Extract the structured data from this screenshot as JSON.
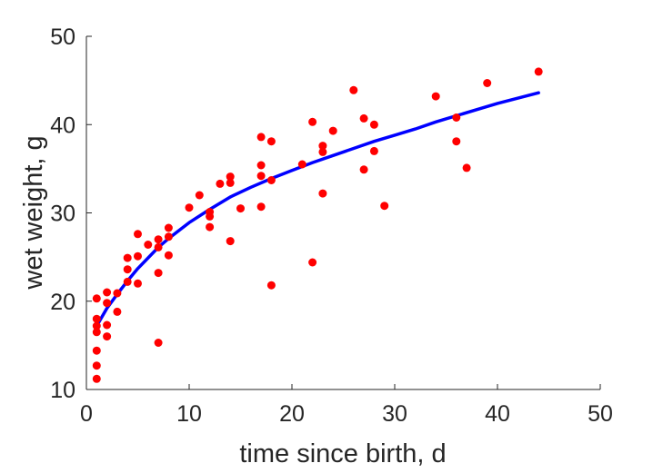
{
  "chart_data": {
    "type": "scatter",
    "xlabel": "time since birth, d",
    "ylabel": "wet weight, g",
    "xlim": [
      0,
      50
    ],
    "ylim": [
      10,
      50
    ],
    "xticks": [
      0,
      10,
      20,
      30,
      40,
      50
    ],
    "yticks": [
      10,
      20,
      30,
      40,
      50
    ],
    "xtick_labels": [
      "0",
      "10",
      "20",
      "30",
      "40",
      "50"
    ],
    "ytick_labels": [
      "10",
      "20",
      "30",
      "40",
      "50"
    ],
    "grid": false,
    "box": false,
    "colors": {
      "points": "#ff0000",
      "fit": "#0000ff",
      "axis": "#262626"
    },
    "series": [
      {
        "kind": "points",
        "x": [
          1,
          1,
          1,
          1,
          1,
          1,
          1,
          2,
          2,
          2,
          2,
          3,
          3,
          4,
          4,
          4,
          5,
          5,
          5,
          6,
          7,
          7,
          7,
          7,
          8,
          8,
          8,
          10,
          11,
          12,
          12,
          12,
          13,
          14,
          14,
          14,
          15,
          17,
          17,
          17,
          17,
          18,
          18,
          18,
          21,
          22,
          22,
          23,
          23,
          23,
          24,
          26,
          27,
          27,
          28,
          28,
          29,
          34,
          36,
          36,
          37,
          39,
          44
        ],
        "y": [
          20.3,
          18.0,
          16.5,
          14.4,
          12.7,
          11.2,
          17.2,
          19.8,
          21.0,
          17.3,
          16.0,
          18.8,
          20.9,
          24.9,
          23.6,
          22.2,
          27.6,
          25.1,
          22.0,
          26.4,
          26.1,
          23.2,
          27.0,
          15.3,
          28.3,
          27.3,
          25.2,
          30.6,
          32.0,
          30.1,
          29.6,
          28.4,
          33.3,
          34.1,
          33.4,
          26.8,
          30.5,
          38.6,
          35.4,
          34.2,
          30.7,
          38.1,
          33.7,
          21.8,
          35.5,
          40.3,
          24.4,
          37.6,
          36.9,
          32.2,
          39.3,
          43.9,
          40.7,
          34.9,
          40.0,
          37.0,
          30.8,
          43.2,
          40.8,
          38.1,
          35.1,
          44.7,
          46.0
        ]
      },
      {
        "kind": "fit-line",
        "x": [
          1,
          2,
          3,
          4,
          5,
          6,
          7,
          8,
          10,
          12,
          14,
          16,
          18,
          20,
          22,
          24,
          26,
          28,
          30,
          32,
          34,
          36,
          38,
          40,
          42,
          44
        ],
        "y": [
          17.2,
          19.2,
          20.8,
          22.3,
          23.7,
          24.9,
          26.1,
          27.1,
          28.9,
          30.4,
          31.8,
          32.9,
          33.9,
          34.8,
          35.7,
          36.5,
          37.3,
          38.1,
          38.8,
          39.5,
          40.3,
          41.0,
          41.7,
          42.4,
          43.0,
          43.6
        ]
      }
    ]
  }
}
